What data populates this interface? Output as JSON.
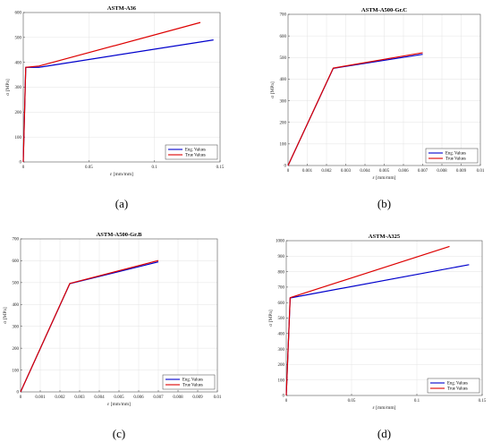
{
  "chart_data": [
    {
      "type": "line",
      "panel_label": "(a)",
      "title": "ASTM-A36",
      "xlabel": "ε [mm/mm]",
      "ylabel": "σ [MPa]",
      "xlim": [
        0,
        0.15
      ],
      "ylim": [
        0,
        600
      ],
      "xticks": [
        0,
        0.05,
        0.1,
        0.15
      ],
      "xtick_labels": [
        "0",
        "0.05",
        "0.1",
        "0.15"
      ],
      "yticks": [
        0,
        100,
        200,
        300,
        400,
        500,
        600
      ],
      "ytick_labels": [
        "0",
        "100",
        "200",
        "300",
        "400",
        "500",
        "600"
      ],
      "grid": true,
      "legend_position": "bottom-right",
      "series": [
        {
          "name": "Eng. Values",
          "color": "#0000cc",
          "x": [
            0,
            0.0019,
            0.012,
            0.145
          ],
          "y": [
            0,
            380,
            380,
            490
          ]
        },
        {
          "name": "True Values",
          "color": "#dd0000",
          "x": [
            0,
            0.0019,
            0.012,
            0.135
          ],
          "y": [
            0,
            380,
            385,
            560
          ]
        }
      ]
    },
    {
      "type": "line",
      "panel_label": "(b)",
      "title": "ASTM-A500-Gr.C",
      "xlabel": "ε [mm/mm]",
      "ylabel": "σ [MPa]",
      "xlim": [
        0,
        0.01
      ],
      "ylim": [
        0,
        700
      ],
      "xticks": [
        0,
        0.001,
        0.002,
        0.003,
        0.004,
        0.005,
        0.006,
        0.007,
        0.008,
        0.009,
        0.01
      ],
      "xtick_labels": [
        "0",
        "0.001",
        "0.002",
        "0.003",
        "0.004",
        "0.005",
        "0.006",
        "0.007",
        "0.008",
        "0.009",
        "0.01"
      ],
      "yticks": [
        0,
        100,
        200,
        300,
        400,
        500,
        600,
        700
      ],
      "ytick_labels": [
        "0",
        "100",
        "200",
        "300",
        "400",
        "500",
        "600",
        "700"
      ],
      "grid": true,
      "legend_position": "bottom-right",
      "series": [
        {
          "name": "Eng. Values",
          "color": "#0000cc",
          "x": [
            0,
            0.00235,
            0.007
          ],
          "y": [
            0,
            450,
            515
          ]
        },
        {
          "name": "True Values",
          "color": "#dd0000",
          "x": [
            0,
            0.00235,
            0.007
          ],
          "y": [
            0,
            451,
            522
          ]
        }
      ]
    },
    {
      "type": "line",
      "panel_label": "(c)",
      "title": "ASTM-A500-Gr.B",
      "xlabel": "ε [mm/mm]",
      "ylabel": "σ [MPa]",
      "xlim": [
        0,
        0.01
      ],
      "ylim": [
        0,
        700
      ],
      "xticks": [
        0,
        0.001,
        0.002,
        0.003,
        0.004,
        0.005,
        0.006,
        0.007,
        0.008,
        0.009,
        0.01
      ],
      "xtick_labels": [
        "0",
        "0.001",
        "0.002",
        "0.003",
        "0.004",
        "0.005",
        "0.006",
        "0.007",
        "0.008",
        "0.009",
        "0.01"
      ],
      "yticks": [
        0,
        100,
        200,
        300,
        400,
        500,
        600,
        700
      ],
      "ytick_labels": [
        "0",
        "100",
        "200",
        "300",
        "400",
        "500",
        "600",
        "700"
      ],
      "grid": true,
      "legend_position": "bottom-right",
      "series": [
        {
          "name": "Eng. Values",
          "color": "#0000cc",
          "x": [
            0,
            0.0025,
            0.007
          ],
          "y": [
            0,
            495,
            595
          ]
        },
        {
          "name": "True Values",
          "color": "#dd0000",
          "x": [
            0,
            0.0025,
            0.007
          ],
          "y": [
            0,
            496,
            601
          ]
        }
      ]
    },
    {
      "type": "line",
      "panel_label": "(d)",
      "title": "ASTM-A325",
      "xlabel": "ε [mm/mm]",
      "ylabel": "σ [MPa]",
      "xlim": [
        0,
        0.15
      ],
      "ylim": [
        0,
        1000
      ],
      "xticks": [
        0,
        0.05,
        0.1,
        0.15
      ],
      "xtick_labels": [
        "0",
        "0.05",
        "0.1",
        "0.15"
      ],
      "yticks": [
        0,
        100,
        200,
        300,
        400,
        500,
        600,
        700,
        800,
        900,
        1000
      ],
      "ytick_labels": [
        "0",
        "100",
        "200",
        "300",
        "400",
        "500",
        "600",
        "700",
        "800",
        "900",
        "1000"
      ],
      "grid": true,
      "legend_position": "bottom-right",
      "series": [
        {
          "name": "Eng. Values",
          "color": "#0000cc",
          "x": [
            0,
            0.003,
            0.14
          ],
          "y": [
            0,
            630,
            845
          ]
        },
        {
          "name": "True Values",
          "color": "#dd0000",
          "x": [
            0,
            0.003,
            0.125
          ],
          "y": [
            0,
            632,
            963
          ]
        }
      ]
    }
  ]
}
